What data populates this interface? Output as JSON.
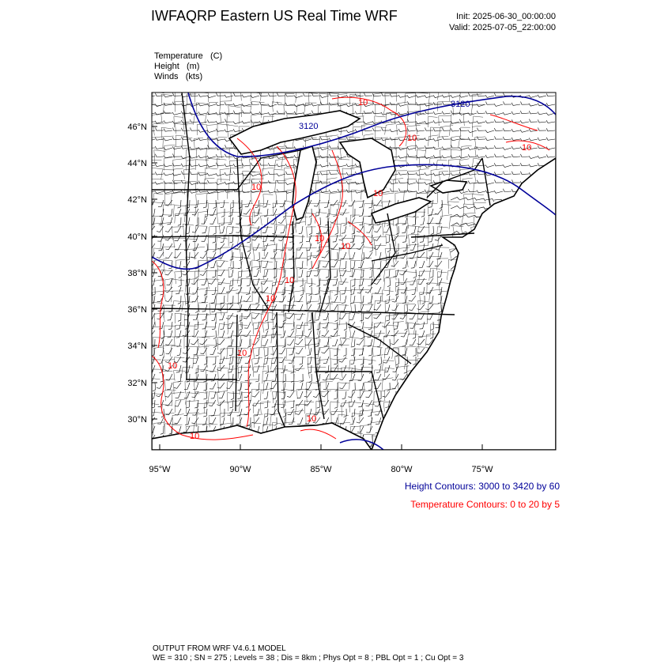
{
  "header": {
    "title": "IWFAQRP Eastern US Real Time WRF",
    "init": "Init: 2025-06-30_00:00:00",
    "valid": "Valid: 2025-07-05_22:00:00"
  },
  "fields": [
    {
      "name": "Temperature",
      "units": "(C)"
    },
    {
      "name": "Height",
      "units": "(m)"
    },
    {
      "name": "Winds",
      "units": "(kts)"
    }
  ],
  "map": {
    "region": "Eastern United States",
    "lat_ticks": [
      "46°N",
      "44°N",
      "42°N",
      "40°N",
      "38°N",
      "36°N",
      "34°N",
      "32°N",
      "30°N"
    ],
    "lon_ticks": [
      "95°W",
      "90°W",
      "85°W",
      "80°W",
      "75°W"
    ],
    "height_contour_labels": [
      "3120",
      "3120"
    ],
    "temp_contour_labels": [
      "10",
      "10",
      "10",
      "10",
      "10",
      "10",
      "10",
      "10",
      "10",
      "10",
      "10",
      "10",
      "10"
    ],
    "colors": {
      "height": "#000099",
      "temperature": "#ff0000",
      "borders": "#000000",
      "counties": "#333333"
    }
  },
  "legend": {
    "height": "Height Contours: 3000 to 3420 by 60",
    "temperature": "Temperature Contours: 0 to 20 by 5"
  },
  "footer": {
    "line1": "OUTPUT FROM WRF V4.6.1 MODEL",
    "line2": "WE = 310 ; SN = 275 ; Levels = 38 ; Dis = 8km ; Phys Opt = 8 ; PBL Opt = 1 ; Cu Opt = 3"
  }
}
